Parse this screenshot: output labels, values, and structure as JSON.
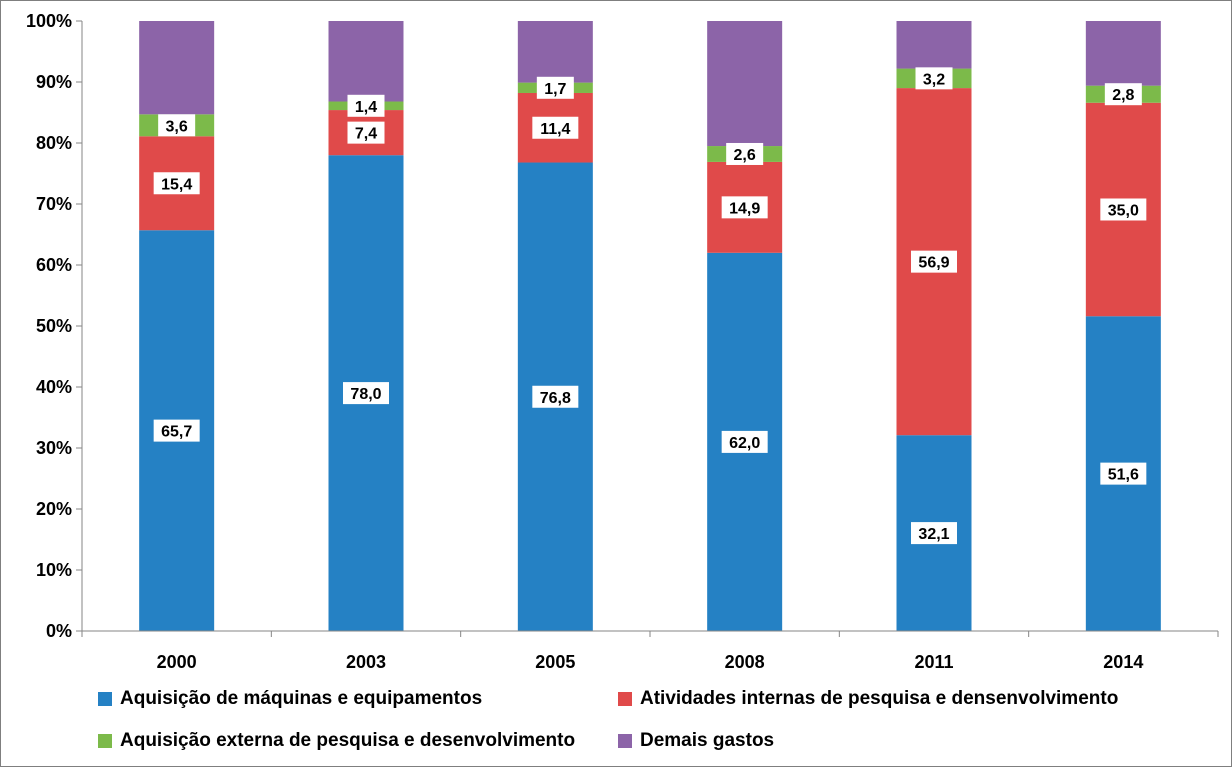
{
  "chart_data": {
    "type": "bar",
    "stacked": true,
    "normalized": true,
    "categories": [
      "2000",
      "2003",
      "2005",
      "2008",
      "2011",
      "2014"
    ],
    "series": [
      {
        "name": "Aquisição de máquinas e equipamentos",
        "color": "#2581c4",
        "values": [
          65.7,
          78.0,
          76.8,
          62.0,
          32.1,
          51.6
        ],
        "labels": [
          "65,7",
          "78,0",
          "76,8",
          "62,0",
          "32,1",
          "51,6"
        ]
      },
      {
        "name": "Atividades internas de pesquisa e densenvolvimento",
        "color": "#e04a4a",
        "values": [
          15.4,
          7.4,
          11.4,
          14.9,
          56.9,
          35.0
        ],
        "labels": [
          "15,4",
          "7,4",
          "11,4",
          "14,9",
          "56,9",
          "35,0"
        ]
      },
      {
        "name": "Aquisição externa de pesquisa e desenvolvimento",
        "color": "#7cba4a",
        "values": [
          3.6,
          1.4,
          1.7,
          2.6,
          3.2,
          2.8
        ],
        "labels": [
          "3,6",
          "1,4",
          "1,7",
          "2,6",
          "3,2",
          "2,8"
        ]
      },
      {
        "name": "Demais gastos",
        "color": "#8c64a8",
        "values": [
          15.3,
          13.2,
          10.1,
          20.5,
          7.8,
          10.6
        ],
        "labels": null
      }
    ],
    "ylim": [
      0,
      100
    ],
    "yticks": [
      "0%",
      "10%",
      "20%",
      "30%",
      "40%",
      "50%",
      "60%",
      "70%",
      "80%",
      "90%",
      "100%"
    ],
    "grid": false,
    "legend_position": "bottom",
    "title": "",
    "xlabel": "",
    "ylabel": ""
  }
}
